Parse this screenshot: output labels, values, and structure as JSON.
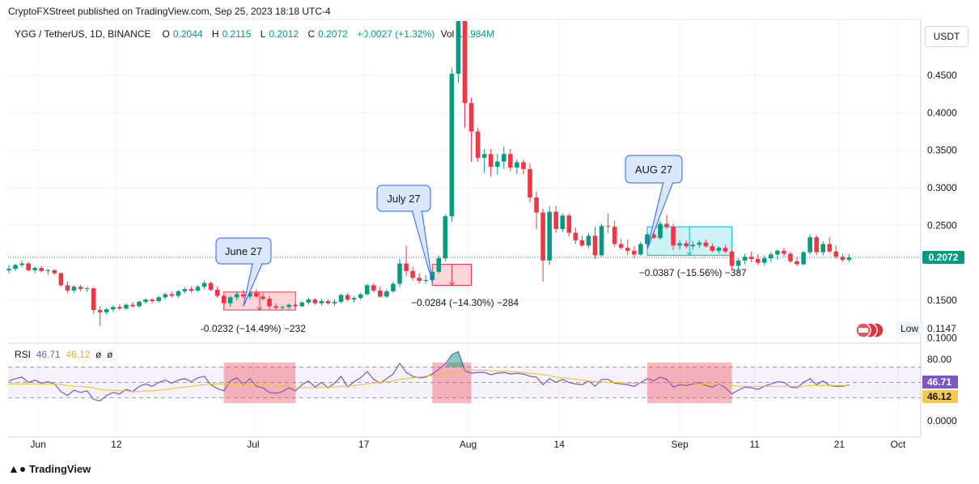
{
  "header": {
    "publisher": "CryptoFXStreet published on TradingView.com, Sep 25, 2023 18:18 UTC-4",
    "symbol": "YGG / TetherUS, 1D, BINANCE",
    "open_label": "O",
    "open": "0.2044",
    "high_label": "H",
    "high": "0.2115",
    "low_label": "L",
    "low": "0.2012",
    "close_label": "C",
    "close": "0.2072",
    "change": "+0.0027 (+1.32%)",
    "vol_label": "Vol",
    "volume": "11.984M"
  },
  "currency_button": "USDT",
  "footer": {
    "brand": "TradingView"
  },
  "colors": {
    "up": "#089981",
    "down": "#f23645",
    "rsi": "#7e57c2",
    "rsi_ma": "#f0c030",
    "measure_down": "#f23645",
    "measure_up": "#00bcd4"
  },
  "chart_data": [
    {
      "type": "candlestick",
      "title": "YGG / TetherUS, 1D, BINANCE",
      "ylim": [
        0.1,
        0.49
      ],
      "y_ticks": [
        "0.4500",
        "0.4000",
        "0.3500",
        "0.3000",
        "0.2500",
        "0.1500",
        "0.1000"
      ],
      "x_ticks": [
        "Jun",
        "12",
        "Jul",
        "17",
        "Aug",
        "14",
        "Sep",
        "11",
        "21",
        "Oct"
      ],
      "last_price_label": "0.2072",
      "low_label": "Low",
      "low_value": "0.1147",
      "candles": [
        [
          0.19,
          0.197,
          0.186,
          0.192
        ],
        [
          0.192,
          0.199,
          0.189,
          0.197
        ],
        [
          0.197,
          0.203,
          0.194,
          0.199
        ],
        [
          0.199,
          0.201,
          0.189,
          0.19
        ],
        [
          0.19,
          0.195,
          0.186,
          0.193
        ],
        [
          0.193,
          0.196,
          0.187,
          0.189
        ],
        [
          0.189,
          0.192,
          0.184,
          0.19
        ],
        [
          0.19,
          0.192,
          0.184,
          0.186
        ],
        [
          0.186,
          0.188,
          0.168,
          0.17
        ],
        [
          0.17,
          0.175,
          0.16,
          0.163
        ],
        [
          0.163,
          0.17,
          0.16,
          0.168
        ],
        [
          0.168,
          0.171,
          0.162,
          0.165
        ],
        [
          0.165,
          0.168,
          0.161,
          0.166
        ],
        [
          0.166,
          0.167,
          0.132,
          0.137
        ],
        [
          0.137,
          0.142,
          0.116,
          0.134
        ],
        [
          0.134,
          0.14,
          0.131,
          0.138
        ],
        [
          0.138,
          0.143,
          0.134,
          0.141
        ],
        [
          0.141,
          0.145,
          0.137,
          0.139
        ],
        [
          0.139,
          0.146,
          0.137,
          0.144
        ],
        [
          0.144,
          0.148,
          0.14,
          0.142
        ],
        [
          0.142,
          0.15,
          0.14,
          0.148
        ],
        [
          0.148,
          0.153,
          0.145,
          0.151
        ],
        [
          0.151,
          0.153,
          0.146,
          0.149
        ],
        [
          0.149,
          0.156,
          0.147,
          0.154
        ],
        [
          0.154,
          0.16,
          0.151,
          0.158
        ],
        [
          0.158,
          0.162,
          0.154,
          0.156
        ],
        [
          0.156,
          0.164,
          0.153,
          0.162
        ],
        [
          0.162,
          0.167,
          0.159,
          0.165
        ],
        [
          0.165,
          0.168,
          0.16,
          0.163
        ],
        [
          0.163,
          0.17,
          0.161,
          0.168
        ],
        [
          0.168,
          0.176,
          0.165,
          0.173
        ],
        [
          0.173,
          0.175,
          0.162,
          0.164
        ],
        [
          0.164,
          0.168,
          0.153,
          0.156
        ],
        [
          0.156,
          0.158,
          0.143,
          0.146
        ],
        [
          0.146,
          0.156,
          0.141,
          0.154
        ],
        [
          0.154,
          0.162,
          0.15,
          0.158
        ],
        [
          0.158,
          0.164,
          0.152,
          0.155
        ],
        [
          0.155,
          0.163,
          0.151,
          0.16
        ],
        [
          0.16,
          0.165,
          0.153,
          0.155
        ],
        [
          0.155,
          0.16,
          0.15,
          0.152
        ],
        [
          0.152,
          0.156,
          0.138,
          0.142
        ],
        [
          0.142,
          0.146,
          0.137,
          0.14
        ],
        [
          0.14,
          0.143,
          0.137,
          0.141
        ],
        [
          0.141,
          0.146,
          0.138,
          0.144
        ],
        [
          0.144,
          0.147,
          0.139,
          0.142
        ],
        [
          0.142,
          0.149,
          0.141,
          0.147
        ],
        [
          0.147,
          0.154,
          0.144,
          0.151
        ],
        [
          0.151,
          0.153,
          0.144,
          0.146
        ],
        [
          0.146,
          0.152,
          0.143,
          0.149
        ],
        [
          0.149,
          0.151,
          0.144,
          0.146
        ],
        [
          0.146,
          0.151,
          0.143,
          0.148
        ],
        [
          0.148,
          0.159,
          0.146,
          0.157
        ],
        [
          0.157,
          0.16,
          0.149,
          0.151
        ],
        [
          0.151,
          0.156,
          0.147,
          0.153
        ],
        [
          0.153,
          0.16,
          0.151,
          0.158
        ],
        [
          0.158,
          0.172,
          0.156,
          0.17
        ],
        [
          0.17,
          0.173,
          0.16,
          0.163
        ],
        [
          0.163,
          0.168,
          0.153,
          0.155
        ],
        [
          0.155,
          0.165,
          0.153,
          0.162
        ],
        [
          0.162,
          0.175,
          0.16,
          0.172
        ],
        [
          0.172,
          0.205,
          0.168,
          0.199
        ],
        [
          0.199,
          0.223,
          0.182,
          0.189
        ],
        [
          0.189,
          0.194,
          0.176,
          0.18
        ],
        [
          0.18,
          0.186,
          0.172,
          0.176
        ],
        [
          0.176,
          0.183,
          0.172,
          0.177
        ],
        [
          0.177,
          0.19,
          0.175,
          0.188
        ],
        [
          0.188,
          0.21,
          0.186,
          0.206
        ],
        [
          0.206,
          0.265,
          0.202,
          0.262
        ],
        [
          0.262,
          0.46,
          0.255,
          0.452
        ],
        [
          0.452,
          0.57,
          0.44,
          0.545
        ],
        [
          0.545,
          0.555,
          0.38,
          0.413
        ],
        [
          0.413,
          0.42,
          0.335,
          0.375
        ],
        [
          0.375,
          0.38,
          0.335,
          0.34
        ],
        [
          0.34,
          0.352,
          0.32,
          0.345
        ],
        [
          0.345,
          0.352,
          0.315,
          0.328
        ],
        [
          0.328,
          0.345,
          0.318,
          0.335
        ],
        [
          0.335,
          0.355,
          0.325,
          0.345
        ],
        [
          0.345,
          0.352,
          0.322,
          0.327
        ],
        [
          0.327,
          0.338,
          0.318,
          0.334
        ],
        [
          0.334,
          0.338,
          0.318,
          0.325
        ],
        [
          0.325,
          0.332,
          0.28,
          0.287
        ],
        [
          0.287,
          0.295,
          0.245,
          0.267
        ],
        [
          0.267,
          0.272,
          0.175,
          0.203
        ],
        [
          0.203,
          0.275,
          0.197,
          0.268
        ],
        [
          0.268,
          0.276,
          0.24,
          0.245
        ],
        [
          0.245,
          0.266,
          0.241,
          0.263
        ],
        [
          0.263,
          0.266,
          0.235,
          0.24
        ],
        [
          0.24,
          0.247,
          0.225,
          0.23
        ],
        [
          0.23,
          0.236,
          0.221,
          0.223
        ],
        [
          0.223,
          0.24,
          0.219,
          0.236
        ],
        [
          0.236,
          0.248,
          0.205,
          0.21
        ],
        [
          0.21,
          0.252,
          0.208,
          0.249
        ],
        [
          0.249,
          0.266,
          0.24,
          0.248
        ],
        [
          0.248,
          0.256,
          0.221,
          0.225
        ],
        [
          0.225,
          0.232,
          0.218,
          0.22
        ],
        [
          0.22,
          0.231,
          0.21,
          0.216
        ],
        [
          0.216,
          0.222,
          0.206,
          0.211
        ],
        [
          0.211,
          0.228,
          0.209,
          0.225
        ],
        [
          0.225,
          0.241,
          0.223,
          0.238
        ],
        [
          0.238,
          0.248,
          0.232,
          0.233
        ],
        [
          0.233,
          0.256,
          0.231,
          0.252
        ],
        [
          0.252,
          0.264,
          0.245,
          0.248
        ],
        [
          0.248,
          0.252,
          0.217,
          0.223
        ],
        [
          0.223,
          0.23,
          0.218,
          0.226
        ],
        [
          0.226,
          0.23,
          0.219,
          0.222
        ],
        [
          0.222,
          0.229,
          0.217,
          0.224
        ],
        [
          0.224,
          0.23,
          0.22,
          0.227
        ],
        [
          0.227,
          0.231,
          0.22,
          0.222
        ],
        [
          0.222,
          0.226,
          0.214,
          0.216
        ],
        [
          0.216,
          0.222,
          0.212,
          0.22
        ],
        [
          0.22,
          0.224,
          0.213,
          0.215
        ],
        [
          0.215,
          0.218,
          0.19,
          0.196
        ],
        [
          0.196,
          0.206,
          0.186,
          0.203
        ],
        [
          0.203,
          0.212,
          0.198,
          0.208
        ],
        [
          0.208,
          0.215,
          0.201,
          0.205
        ],
        [
          0.205,
          0.211,
          0.197,
          0.2
        ],
        [
          0.2,
          0.21,
          0.196,
          0.206
        ],
        [
          0.206,
          0.214,
          0.201,
          0.211
        ],
        [
          0.211,
          0.218,
          0.204,
          0.216
        ],
        [
          0.216,
          0.22,
          0.208,
          0.212
        ],
        [
          0.212,
          0.215,
          0.2,
          0.202
        ],
        [
          0.202,
          0.208,
          0.196,
          0.198
        ],
        [
          0.198,
          0.216,
          0.197,
          0.214
        ],
        [
          0.214,
          0.238,
          0.211,
          0.234
        ],
        [
          0.234,
          0.237,
          0.21,
          0.214
        ],
        [
          0.214,
          0.229,
          0.21,
          0.225
        ],
        [
          0.225,
          0.234,
          0.213,
          0.215
        ],
        [
          0.215,
          0.223,
          0.205,
          0.208
        ],
        [
          0.208,
          0.212,
          0.201,
          0.204
        ],
        [
          0.204,
          0.212,
          0.201,
          0.207
        ]
      ],
      "annotations": [
        {
          "label": "June 27",
          "measure": "-0.0232 (−14.49%) −232"
        },
        {
          "label": "July 27",
          "measure": "−0.0284 (−14.30%) −284"
        },
        {
          "label": "AUG 27",
          "measure": "−0.0387 (−15.56%) −387"
        }
      ]
    },
    {
      "type": "line",
      "title": "RSI",
      "legend": {
        "name": "RSI",
        "rsi": "46.71",
        "ma": "46.12",
        "extra1": "ø",
        "extra2": "ø"
      },
      "ylim": [
        0,
        100
      ],
      "y_ticks": [
        "80.00",
        "0.0000"
      ],
      "levels": [
        70,
        50,
        30
      ],
      "series": [
        {
          "name": "RSI",
          "values": [
            52,
            55,
            57,
            50,
            53,
            49,
            51,
            48,
            38,
            33,
            40,
            37,
            39,
            28,
            26,
            33,
            37,
            35,
            41,
            38,
            45,
            48,
            45,
            50,
            53,
            49,
            53,
            55,
            51,
            56,
            58,
            47,
            42,
            39,
            52,
            56,
            47,
            55,
            45,
            43,
            37,
            36,
            38,
            43,
            39,
            47,
            52,
            44,
            50,
            43,
            49,
            58,
            44,
            51,
            56,
            64,
            54,
            49,
            55,
            61,
            75,
            63,
            58,
            56,
            57,
            61,
            67,
            74,
            86,
            90,
            65,
            62,
            63,
            63,
            60,
            62,
            63,
            61,
            62,
            61,
            58,
            57,
            47,
            55,
            50,
            54,
            50,
            48,
            47,
            52,
            45,
            54,
            54,
            49,
            48,
            47,
            45,
            50,
            55,
            52,
            57,
            54,
            44,
            47,
            46,
            48,
            50,
            46,
            44,
            48,
            43,
            35,
            40,
            44,
            43,
            41,
            45,
            48,
            51,
            50,
            44,
            43,
            50,
            55,
            47,
            52,
            46,
            45,
            45,
            47
          ]
        },
        {
          "name": "RSI-based MA",
          "values": [
            48,
            48,
            48,
            48,
            48,
            48,
            48,
            48,
            47,
            46,
            45,
            45,
            44,
            43,
            41,
            40,
            40,
            39,
            39,
            38,
            38,
            39,
            39,
            40,
            41,
            42,
            43,
            44,
            45,
            46,
            47,
            48,
            48,
            48,
            48,
            48,
            48,
            48,
            48,
            48,
            47,
            46,
            45,
            44,
            43,
            43,
            43,
            43,
            44,
            44,
            44,
            45,
            45,
            46,
            47,
            48,
            49,
            50,
            51,
            52,
            54,
            55,
            56,
            57,
            58,
            59,
            60,
            61,
            63,
            65,
            66,
            66,
            66,
            66,
            65,
            65,
            65,
            64,
            64,
            63,
            62,
            61,
            60,
            59,
            57,
            56,
            55,
            54,
            53,
            52,
            51,
            51,
            50,
            50,
            50,
            49,
            49,
            49,
            49,
            49,
            49,
            49,
            49,
            49,
            49,
            49,
            48,
            48,
            48,
            47,
            47,
            46,
            45,
            45,
            45,
            45,
            45,
            45,
            45,
            45,
            45,
            45,
            45,
            46,
            46,
            46,
            46,
            46,
            46,
            46
          ]
        }
      ],
      "last_values": [
        "46.71",
        "46.12"
      ]
    }
  ]
}
